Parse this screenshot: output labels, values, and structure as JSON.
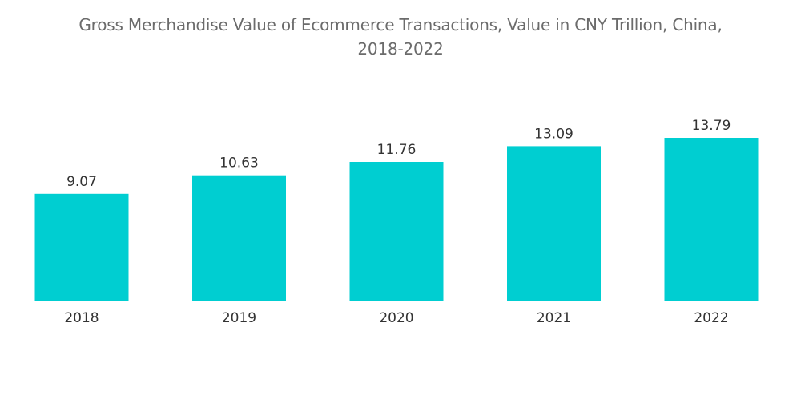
{
  "chart_data": {
    "type": "bar",
    "title": "Gross Merchandise Value of Ecommerce Transactions, Value in CNY Trillion, China,",
    "subtitle": "2018-2022",
    "categories": [
      "2018",
      "2019",
      "2020",
      "2021",
      "2022"
    ],
    "values": [
      9.07,
      10.63,
      11.76,
      13.09,
      13.79
    ],
    "data_labels": [
      "9.07",
      "10.63",
      "11.76",
      "13.09",
      "13.79"
    ],
    "xlabel": "",
    "ylabel": "",
    "ylim": [
      0,
      13.79
    ],
    "grid": false,
    "legend": "none",
    "bar_color": "#00CED1"
  }
}
